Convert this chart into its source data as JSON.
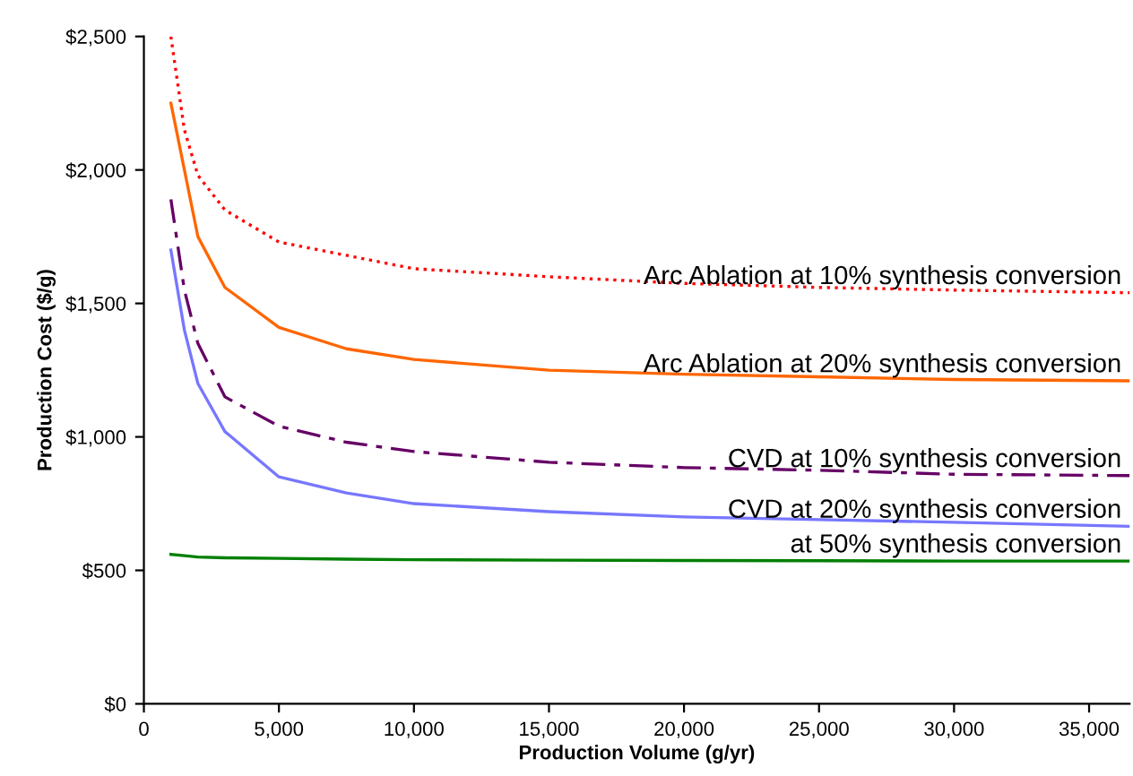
{
  "chart_data": {
    "type": "line",
    "xlabel": "Production Volume (g/yr)",
    "ylabel": "Production Cost ($/g)",
    "xlim": [
      0,
      36500
    ],
    "xticks": [
      {
        "value": 0,
        "label": "0"
      },
      {
        "value": 5000,
        "label": "5,000"
      },
      {
        "value": 10000,
        "label": "10,000"
      },
      {
        "value": 15000,
        "label": "15,000"
      },
      {
        "value": 20000,
        "label": "20,000"
      },
      {
        "value": 25000,
        "label": "25,000"
      },
      {
        "value": 30000,
        "label": "30,000"
      },
      {
        "value": 35000,
        "label": "35,000"
      }
    ],
    "ylim": [
      0,
      2500
    ],
    "yticks": [
      {
        "value": 0,
        "label": "$0"
      },
      {
        "value": 500,
        "label": "$500"
      },
      {
        "value": 1000,
        "label": "$1,000"
      },
      {
        "value": 1500,
        "label": "$1,500"
      },
      {
        "value": 2000,
        "label": "$2,000"
      },
      {
        "value": 2500,
        "label": "$2,500"
      }
    ],
    "grid": false,
    "legend": false,
    "marker": "none",
    "x": [
      1000,
      1500,
      2000,
      3000,
      5000,
      7500,
      10000,
      15000,
      20000,
      25000,
      30000,
      36500
    ],
    "series": [
      {
        "name": "Arc Ablation at 10% synthesis conversion",
        "color": "#ff0000",
        "line_style": "dotted",
        "values": [
          2500,
          2150,
          1980,
          1850,
          1730,
          1680,
          1630,
          1600,
          1575,
          1560,
          1550,
          1540
        ]
      },
      {
        "name": "Arc Ablation at 20% synthesis conversion",
        "color": "#ff6600",
        "line_style": "solid",
        "values": [
          2250,
          2000,
          1750,
          1560,
          1410,
          1330,
          1290,
          1250,
          1235,
          1225,
          1215,
          1210
        ]
      },
      {
        "name": "CVD at 10% synthesis conversion",
        "color": "#660066",
        "line_style": "dashed",
        "values": [
          1890,
          1550,
          1350,
          1150,
          1040,
          980,
          945,
          905,
          885,
          875,
          860,
          855
        ]
      },
      {
        "name": "CVD at 20% synthesis conversion",
        "color": "#7777ff",
        "line_style": "solid",
        "values": [
          1700,
          1400,
          1200,
          1020,
          850,
          790,
          750,
          720,
          700,
          690,
          680,
          665
        ]
      },
      {
        "name": "at 50% synthesis conversion",
        "color": "#008000",
        "line_style": "solid",
        "values": [
          560,
          555,
          550,
          547,
          545,
          542,
          540,
          538,
          537,
          536,
          535,
          535
        ]
      }
    ]
  }
}
